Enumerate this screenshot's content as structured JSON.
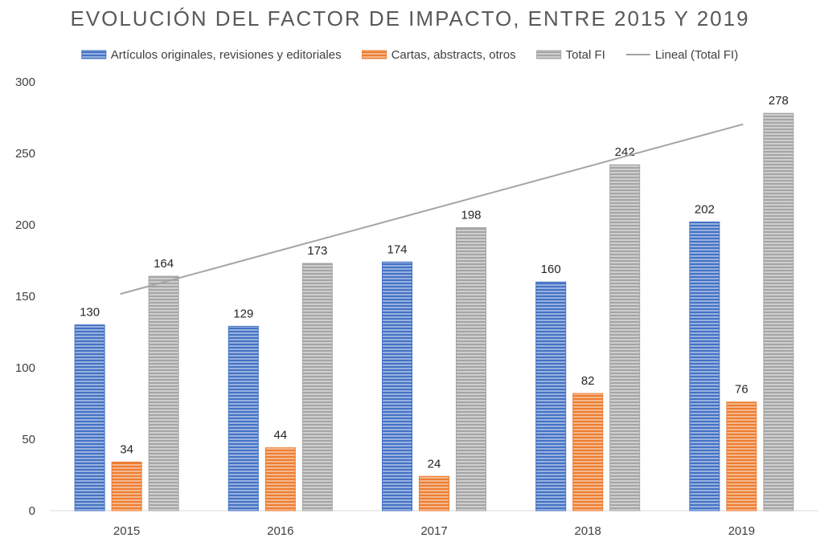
{
  "chart_data": {
    "type": "bar",
    "title": "EVOLUCIÓN DEL FACTOR DE IMPACTO, ENTRE 2015 Y 2019",
    "xlabel": "",
    "ylabel": "",
    "categories": [
      "2015",
      "2016",
      "2017",
      "2018",
      "2019"
    ],
    "ylim": [
      0,
      300
    ],
    "yticks": [
      0,
      50,
      100,
      150,
      200,
      250,
      300
    ],
    "grid": false,
    "legend_position": "top",
    "series": [
      {
        "name": "Artículos originales, revisiones y editoriales",
        "values": [
          130,
          129,
          174,
          160,
          202
        ],
        "color": "#4472C4"
      },
      {
        "name": "Cartas, abstracts, otros",
        "values": [
          34,
          44,
          24,
          82,
          76
        ],
        "color": "#ED7D31"
      },
      {
        "name": "Total FI",
        "values": [
          164,
          173,
          198,
          242,
          278
        ],
        "color": "#A5A5A5"
      }
    ],
    "trendline": {
      "name": "Lineal (Total FI)",
      "series": "Total FI",
      "type": "linear",
      "color": "#A5A5A5"
    },
    "data_labels": true
  }
}
